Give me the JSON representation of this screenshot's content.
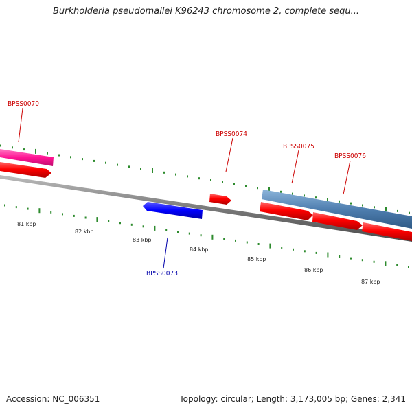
{
  "title": "Burkholderia pseudomallei K96243 chromosome 2, complete sequ...",
  "accession": "Accession: NC_006351",
  "summary": "Topology: circular; Length: 3,173,005 bp; Genes: 2,341",
  "ruler": {
    "unit": "kbp",
    "labels": [
      "81 kbp",
      "82 kbp",
      "83 kbp",
      "84 kbp",
      "85 kbp",
      "86 kbp",
      "87 kbp"
    ]
  },
  "genes": [
    {
      "name": "BPSS0070",
      "strand": "+",
      "color": "#ff1493"
    },
    {
      "name": "BPSS0073",
      "strand": "-",
      "color": "#0000ff"
    },
    {
      "name": "BPSS0074",
      "strand": "+",
      "color": "#ff0000"
    },
    {
      "name": "BPSS0075",
      "strand": "+",
      "color": "#ff0000"
    },
    {
      "name": "BPSS0076",
      "strand": "+",
      "color": "#ff0000"
    }
  ],
  "colors": {
    "ticks": "#2e8b2e",
    "backbone": "#7a7a7a",
    "forward_gene": "#ff0000",
    "pink_feature": "#ff1493",
    "reverse_gene": "#0000ff",
    "region": "#4f7fb0",
    "label_forward": "#cc0000",
    "label_reverse": "#0000aa"
  }
}
